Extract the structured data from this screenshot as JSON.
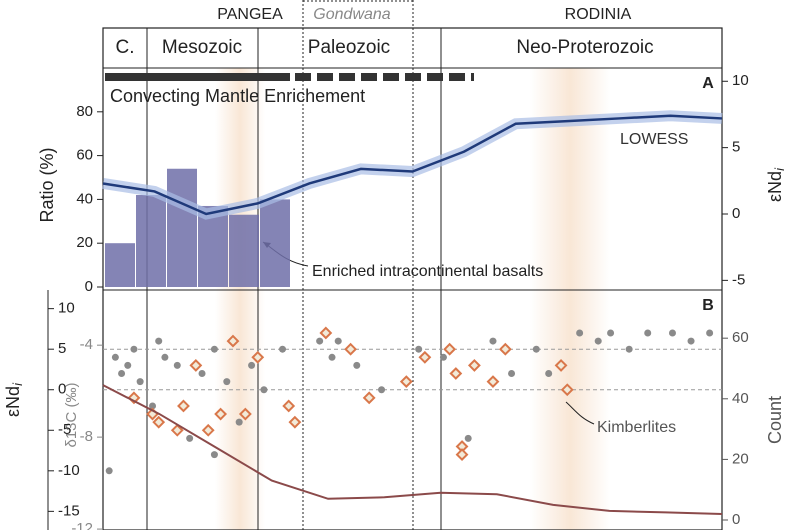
{
  "chart_data": [
    {
      "type": "bar",
      "panel_label": "A",
      "supercontinents": [
        "PANGEA",
        "Gondwana",
        "RODINIA"
      ],
      "eras": [
        "C.",
        "Mesozoic",
        "Paleozoic",
        "Neo-Proterozoic"
      ],
      "ylabel": "Ratio (%)",
      "y2label": "εNd",
      "y2label_sub": "i",
      "ylim": [
        0,
        100
      ],
      "yticks": [
        0,
        20,
        40,
        60,
        80
      ],
      "y2lim": [
        -5.5,
        11
      ],
      "y2ticks": [
        -5,
        0,
        5,
        10
      ],
      "values": [
        20,
        42,
        54,
        37,
        33,
        40
      ],
      "color": "#6e6fa8",
      "series": [
        {
          "name": "LOWESS",
          "color": "#1f3a7a",
          "axis": "y2",
          "values": [
            2.3,
            1.7,
            0,
            0.8,
            2.3,
            3.4,
            3.2,
            4.7,
            6.8,
            7.0,
            7.2,
            7.4,
            7.2
          ]
        }
      ],
      "annotations": [
        "Convecting Mantle Enrichement",
        "Enriched intracontinental basalts"
      ]
    },
    {
      "type": "scatter",
      "panel_label": "B",
      "ylabel": "εNd",
      "ylabel_sub": "i",
      "ylim": [
        -17.3,
        12.3
      ],
      "yticks": [
        10,
        5,
        0,
        -5,
        -10,
        -15
      ],
      "y3label": "δ13C (‰)",
      "y3lim": [
        -12.04,
        -1.6
      ],
      "y3ticks": [
        -4,
        -8,
        -12
      ],
      "y2label": "Count",
      "y2lim": [
        -3.3,
        75.9
      ],
      "y2ticks": [
        0,
        20,
        40,
        60
      ],
      "xlim": [
        0,
        100
      ],
      "reference_lines": [
        5,
        0
      ],
      "series": [
        {
          "color": "#8a8a8a",
          "marker": "circle",
          "x": [
            2,
            3,
            4,
            5,
            6,
            8,
            9,
            10,
            12,
            14,
            16,
            18,
            20,
            22,
            24,
            26,
            29,
            35,
            37,
            38,
            41,
            45,
            51,
            55,
            57,
            59,
            63,
            66,
            70,
            72,
            77,
            80,
            82,
            85,
            88,
            92,
            95,
            98,
            1,
            18
          ],
          "values": [
            4,
            2,
            3,
            5,
            1,
            -2,
            6,
            4,
            3,
            -6,
            2,
            5,
            1,
            -4,
            3,
            0,
            5,
            6,
            4,
            6,
            3,
            0,
            5,
            4,
            2,
            -6,
            6,
            2,
            5,
            2,
            7,
            6,
            7,
            5,
            7,
            7,
            6,
            7,
            -10,
            -8
          ]
        },
        {
          "color": "#d9774a",
          "marker": "diamond",
          "x": [
            5,
            8,
            9,
            12,
            13,
            15,
            17,
            19,
            21,
            23,
            25,
            31,
            36,
            40,
            43,
            52,
            56,
            57,
            58,
            58,
            60,
            63,
            65,
            74,
            75,
            30,
            49
          ],
          "values": [
            -1,
            -3,
            -4,
            -5,
            -2,
            3,
            -5,
            -3,
            6,
            -3,
            4,
            -4,
            7,
            5,
            -1,
            4,
            5,
            2,
            -7,
            -8,
            3,
            1,
            5,
            3,
            0,
            -2,
            1
          ]
        },
        {
          "color": "#8b4a4a",
          "axis": "y2",
          "marker": "line",
          "values": [
            44.5,
            35,
            24,
            13,
            7,
            7.5,
            9,
            8.5,
            5,
            3,
            2.5,
            2
          ]
        }
      ],
      "annotations": [
        "Kimberlites"
      ]
    }
  ]
}
